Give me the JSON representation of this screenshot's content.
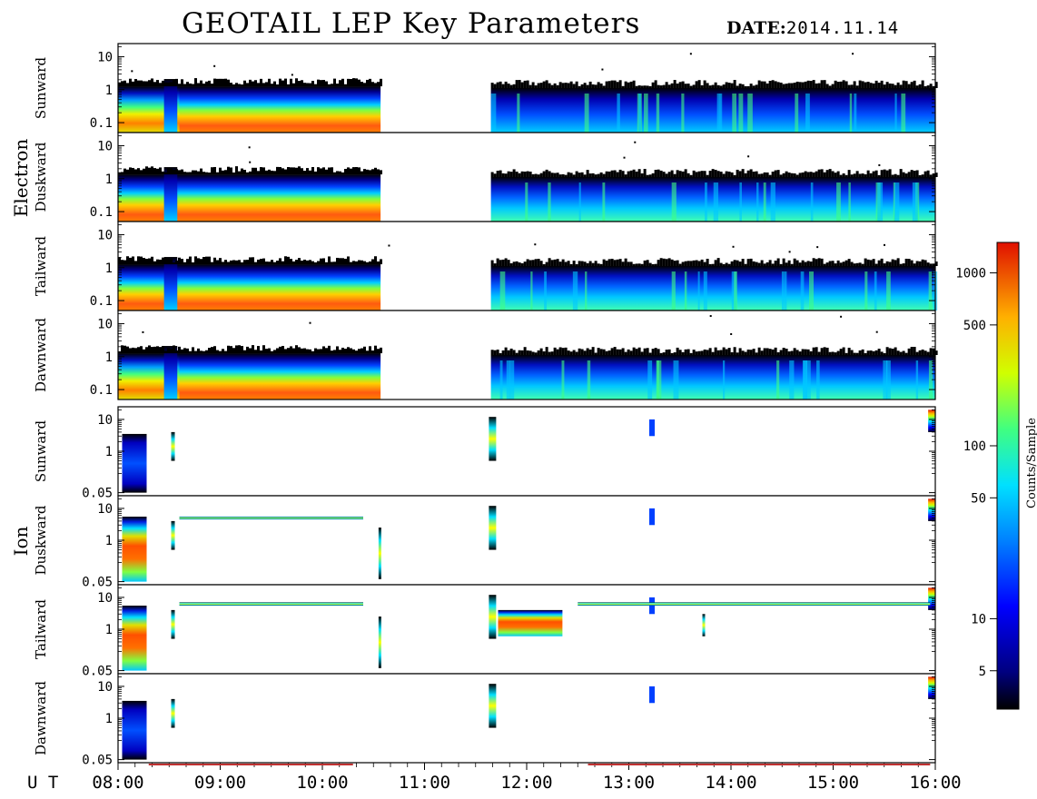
{
  "header": {
    "title": "GEOTAIL LEP Key Parameters",
    "date_label": "DATE:",
    "date_value": "2014.11.14"
  },
  "groups": [
    {
      "label": "Electron"
    },
    {
      "label": "Ion"
    }
  ],
  "colorbar": {
    "label": "Counts/Sample",
    "ticks": [
      "1000",
      "500",
      "100",
      "50",
      "10",
      "5"
    ],
    "tick_values": [
      1000,
      500,
      100,
      50,
      10,
      5
    ],
    "range": [
      3,
      1500
    ],
    "scale": "log"
  },
  "x_axis": {
    "label": "U T",
    "ticks": [
      "08:00",
      "09:00",
      "10:00",
      "11:00",
      "12:00",
      "13:00",
      "14:00",
      "15:00",
      "16:00"
    ],
    "range": [
      8,
      16
    ]
  },
  "chart_data": [
    {
      "type": "heatmap",
      "group": "Electron",
      "panel": "Sunward",
      "y_ticks": [
        "10",
        "1",
        "0.1"
      ],
      "y_range": [
        0.05,
        25
      ],
      "y_scale": "log",
      "x_range": [
        8,
        16
      ],
      "data_coverage": [
        [
          8.0,
          10.57
        ],
        [
          11.65,
          16.0
        ]
      ],
      "grid": false
    },
    {
      "type": "heatmap",
      "group": "Electron",
      "panel": "Duskward",
      "y_ticks": [
        "10",
        "1",
        "0.1"
      ],
      "y_range": [
        0.05,
        25
      ],
      "y_scale": "log",
      "x_range": [
        8,
        16
      ],
      "data_coverage": [
        [
          8.0,
          10.57
        ],
        [
          11.65,
          16.0
        ]
      ],
      "grid": false
    },
    {
      "type": "heatmap",
      "group": "Electron",
      "panel": "Tailward",
      "y_ticks": [
        "10",
        "1",
        "0.1"
      ],
      "y_range": [
        0.05,
        25
      ],
      "y_scale": "log",
      "x_range": [
        8,
        16
      ],
      "data_coverage": [
        [
          8.0,
          10.57
        ],
        [
          11.65,
          16.0
        ]
      ],
      "grid": false
    },
    {
      "type": "heatmap",
      "group": "Electron",
      "panel": "Dawnward",
      "y_ticks": [
        "10",
        "1",
        "0.1"
      ],
      "y_range": [
        0.05,
        25
      ],
      "y_scale": "log",
      "x_range": [
        8,
        16
      ],
      "data_coverage": [
        [
          8.0,
          10.57
        ],
        [
          11.65,
          16.0
        ]
      ],
      "grid": false
    },
    {
      "type": "heatmap",
      "group": "Ion",
      "panel": "Sunward",
      "y_ticks": [
        "10",
        "1",
        "0.05"
      ],
      "y_range": [
        0.04,
        25
      ],
      "y_scale": "log",
      "x_range": [
        8,
        16
      ],
      "grid": false
    },
    {
      "type": "heatmap",
      "group": "Ion",
      "panel": "Duskward",
      "y_ticks": [
        "10",
        "1",
        "0.05"
      ],
      "y_range": [
        0.04,
        25
      ],
      "y_scale": "log",
      "x_range": [
        8,
        16
      ],
      "grid": false
    },
    {
      "type": "heatmap",
      "group": "Ion",
      "panel": "Tailward",
      "y_ticks": [
        "10",
        "1",
        "0.05"
      ],
      "y_range": [
        0.04,
        25
      ],
      "y_scale": "log",
      "x_range": [
        8,
        16
      ],
      "grid": false
    },
    {
      "type": "heatmap",
      "group": "Ion",
      "panel": "Dawnward",
      "y_ticks": [
        "10",
        "1",
        "0.05"
      ],
      "y_range": [
        0.04,
        25
      ],
      "y_scale": "log",
      "x_range": [
        8,
        16
      ],
      "grid": false
    }
  ]
}
